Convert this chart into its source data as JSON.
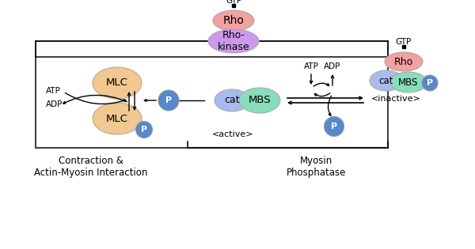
{
  "bg_color": "#ffffff",
  "rho_color": "#f2a0a0",
  "rhokinase_color": "#cc99ee",
  "mlc_color": "#f0c890",
  "p_color": "#5588cc",
  "cat_color": "#aabbee",
  "mbs_color": "#88ddbb",
  "title_left": "Contraction &\nActin-Myosin Interaction",
  "title_right": "Myosin\nPhosphatase",
  "label_active": "<active>",
  "label_inactive": "<inactive>",
  "label_gtp1": "GTP",
  "label_gtp2": "GTP",
  "label_atp_left": "ATP",
  "label_adp_left": "ADP",
  "label_atp_right": "ATP",
  "label_adp_right": "ADP"
}
